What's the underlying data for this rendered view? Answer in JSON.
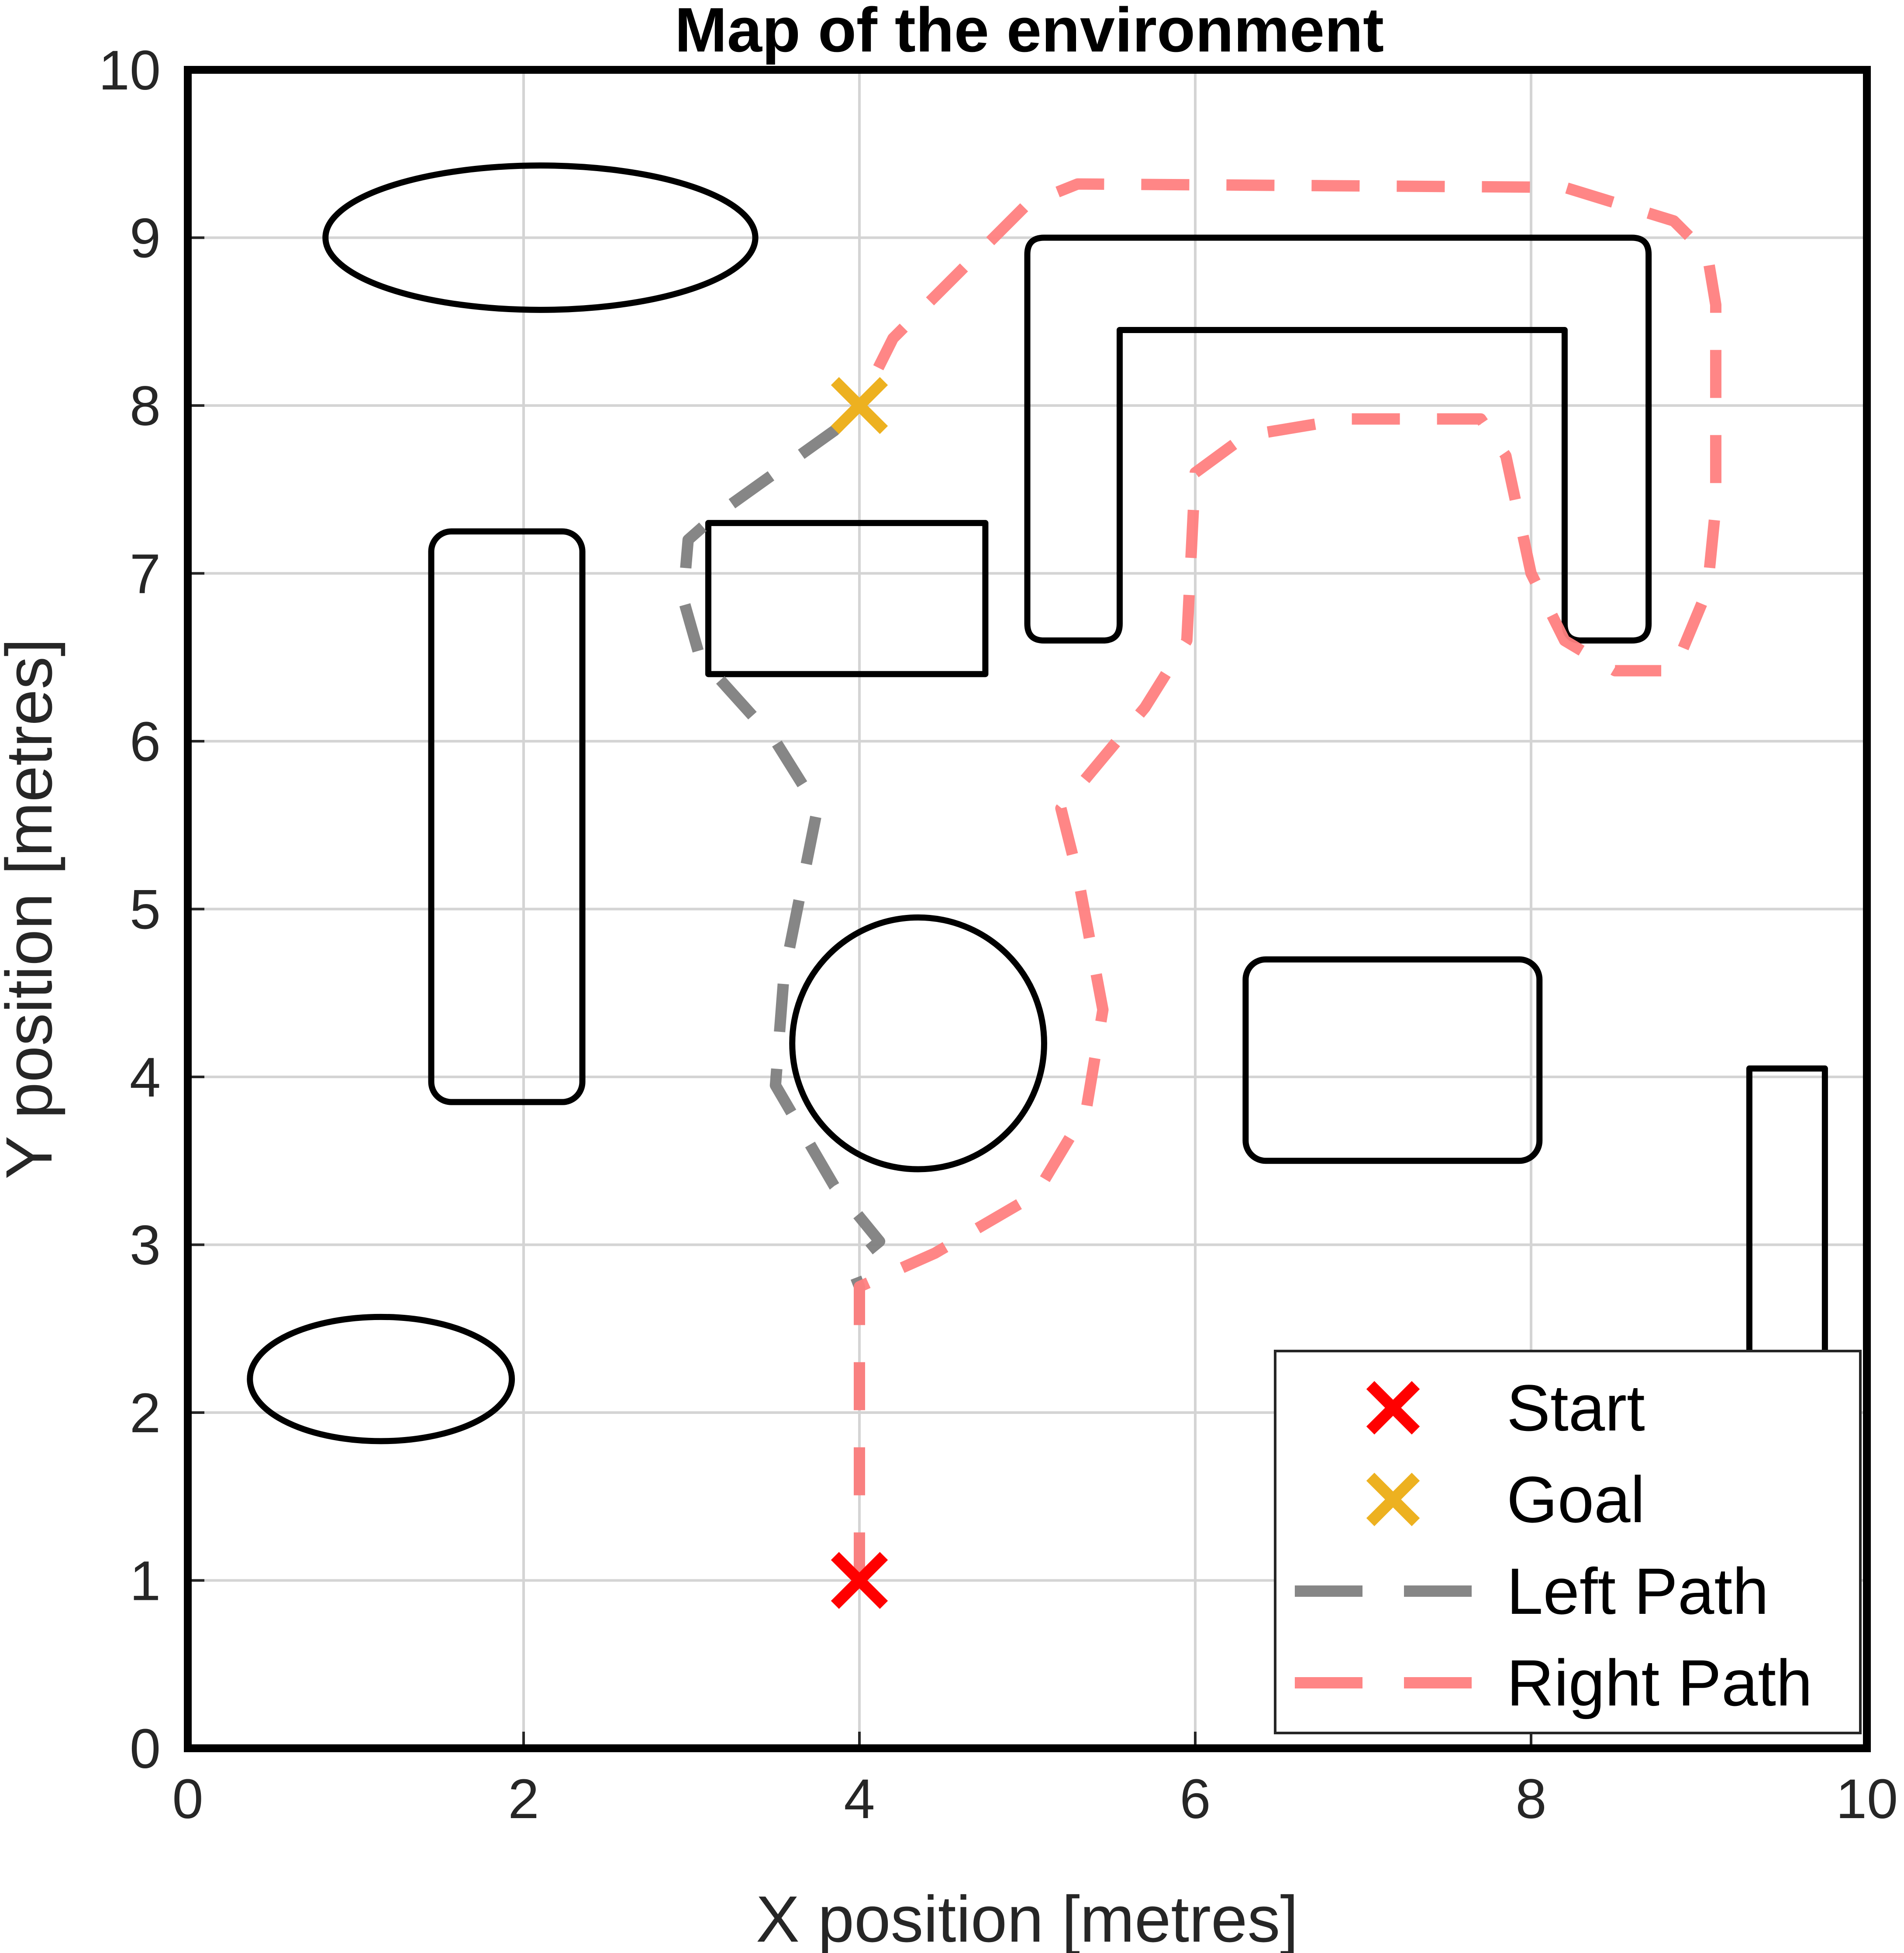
{
  "chart_data": {
    "type": "line",
    "title": "Map of the environment",
    "xlabel": "X position [metres]",
    "ylabel": "Y position [metres]",
    "xlim": [
      0,
      10
    ],
    "ylim": [
      0,
      10
    ],
    "xticks": [
      "0",
      "2",
      "4",
      "6",
      "8",
      "10"
    ],
    "yticks": [
      "0",
      "1",
      "2",
      "3",
      "4",
      "5",
      "6",
      "7",
      "8",
      "9",
      "10"
    ],
    "grid": true,
    "legend_position": "bottom-right",
    "markers": [
      {
        "name": "Start",
        "x": 4,
        "y": 1,
        "color": "#ff0000"
      },
      {
        "name": "Goal",
        "x": 4,
        "y": 8,
        "color": "#edb120"
      }
    ],
    "series": [
      {
        "name": "Left Path",
        "color": "#7f7f7f",
        "points": [
          [
            4,
            1
          ],
          [
            4,
            2.75
          ],
          [
            3.95,
            2.88
          ],
          [
            4.12,
            3.02
          ],
          [
            3.85,
            3.35
          ],
          [
            3.5,
            3.95
          ],
          [
            3.55,
            4.6
          ],
          [
            3.75,
            5.6
          ],
          [
            3.5,
            6.0
          ],
          [
            3.05,
            6.5
          ],
          [
            2.95,
            6.85
          ],
          [
            2.98,
            7.2
          ],
          [
            3.15,
            7.35
          ],
          [
            3.5,
            7.6
          ],
          [
            3.85,
            7.85
          ],
          [
            4,
            8
          ]
        ]
      },
      {
        "name": "Right Path",
        "color": "#ff7f7f",
        "points": [
          [
            4,
            1
          ],
          [
            4,
            2.75
          ],
          [
            4.45,
            2.95
          ],
          [
            5.05,
            3.3
          ],
          [
            5.35,
            3.8
          ],
          [
            5.45,
            4.4
          ],
          [
            5.3,
            5.2
          ],
          [
            5.2,
            5.6
          ],
          [
            5.7,
            6.2
          ],
          [
            5.95,
            6.6
          ],
          [
            6.0,
            7.6
          ],
          [
            6.3,
            7.82
          ],
          [
            6.9,
            7.92
          ],
          [
            7.7,
            7.92
          ],
          [
            7.85,
            7.7
          ],
          [
            8.0,
            7.0
          ],
          [
            8.2,
            6.6
          ],
          [
            8.5,
            6.42
          ],
          [
            8.85,
            6.42
          ],
          [
            9.05,
            6.9
          ],
          [
            9.1,
            7.4
          ],
          [
            9.1,
            8.6
          ],
          [
            9.05,
            8.9
          ],
          [
            8.85,
            9.1
          ],
          [
            8.2,
            9.3
          ],
          [
            5.3,
            9.32
          ],
          [
            5.0,
            9.2
          ],
          [
            4.6,
            8.8
          ],
          [
            4.2,
            8.4
          ],
          [
            4,
            8
          ]
        ]
      }
    ],
    "obstacles": [
      {
        "shape": "ellipse",
        "cx": 2.1,
        "cy": 9.0,
        "rx": 1.28,
        "ry": 0.43
      },
      {
        "shape": "ellipse",
        "cx": 1.15,
        "cy": 2.2,
        "rx": 0.78,
        "ry": 0.37
      },
      {
        "shape": "circle",
        "cx": 4.35,
        "cy": 4.2,
        "r": 0.75
      },
      {
        "shape": "rounded_rect",
        "x": [
          1.45,
          2.35
        ],
        "y": [
          3.85,
          7.25
        ]
      },
      {
        "shape": "rect",
        "x": [
          3.1,
          4.75
        ],
        "y": [
          6.4,
          7.3
        ]
      },
      {
        "shape": "rounded_rect",
        "x": [
          6.3,
          8.05
        ],
        "y": [
          3.5,
          4.7
        ]
      },
      {
        "shape": "rect",
        "x": [
          9.3,
          9.75
        ],
        "y": [
          2.3,
          4.05
        ]
      },
      {
        "shape": "u_shape",
        "outer_x": [
          5.0,
          8.7
        ],
        "outer_y": [
          6.6,
          9.0
        ],
        "inner_x": [
          5.55,
          8.2
        ],
        "inner_y": [
          6.6,
          8.45
        ]
      }
    ]
  }
}
